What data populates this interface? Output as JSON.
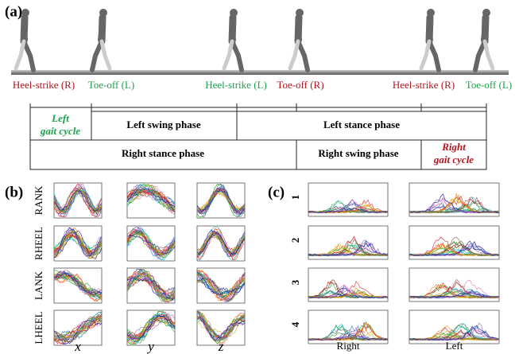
{
  "panels": {
    "a": {
      "label": "(a)",
      "events": [
        {
          "text": "Heel-strike (R)",
          "side": "R"
        },
        {
          "text": "Toe-off (L)",
          "side": "L"
        },
        {
          "text": "Heel-strike (L)",
          "side": "L"
        },
        {
          "text": "Toe-off (R)",
          "side": "R"
        },
        {
          "text": "Heel-strike (R)",
          "side": "R"
        },
        {
          "text": "Toe-off (L)",
          "side": "L"
        }
      ],
      "left_gait_cycle": [
        "Left",
        "gait cycle"
      ],
      "left_swing": "Left swing phase",
      "left_stance": "Left stance phase",
      "right_stance": "Right stance phase",
      "right_swing": "Right swing phase",
      "right_gait_cycle": [
        "Right",
        "gait cycle"
      ]
    },
    "b": {
      "label": "(b)",
      "rows": [
        "RANK",
        "RHEEL",
        "LANK",
        "LHEEL"
      ],
      "axes": [
        "x",
        "y",
        "z"
      ]
    },
    "c": {
      "label": "(c)",
      "rows": [
        "1",
        "2",
        "3",
        "4"
      ],
      "columns": [
        "Right",
        "Left"
      ]
    }
  }
}
